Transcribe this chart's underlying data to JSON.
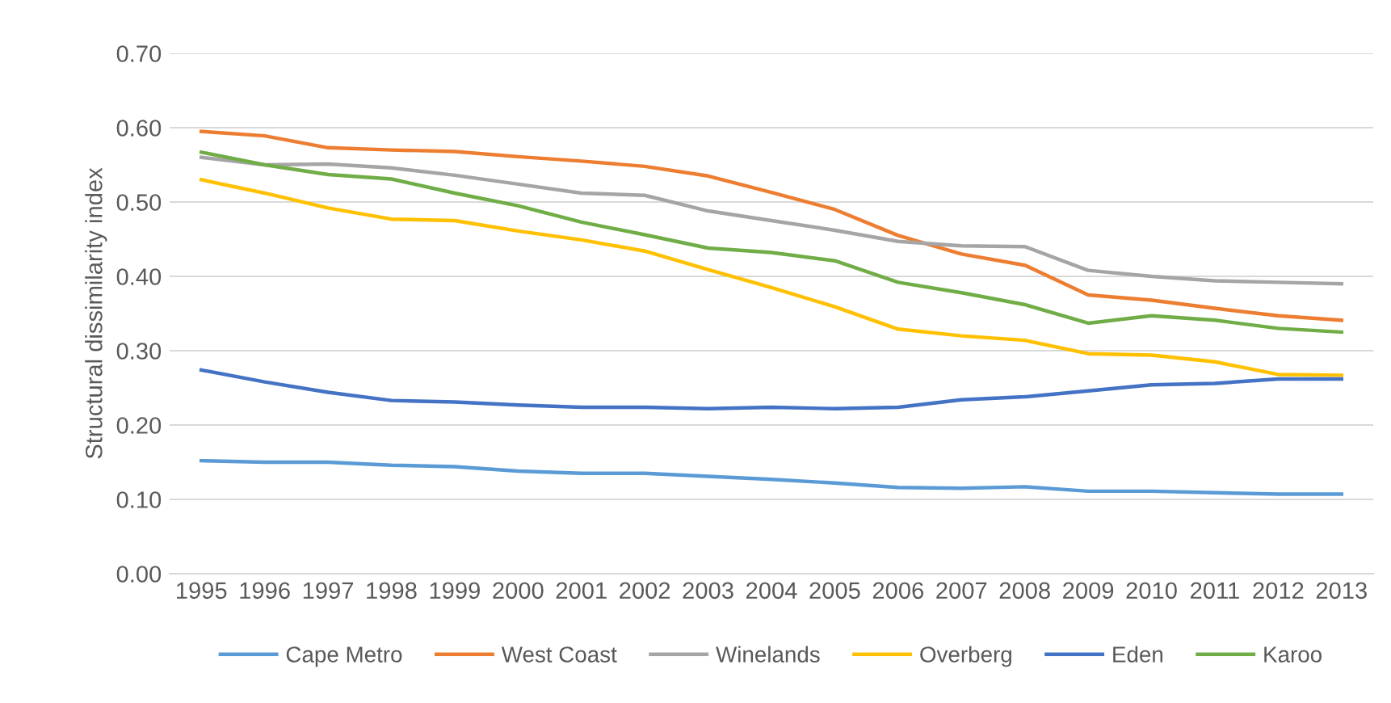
{
  "chart_data": {
    "type": "line",
    "ylabel": "Structural dissimilarity index",
    "categories": [
      "1995",
      "1996",
      "1997",
      "1998",
      "1999",
      "2000",
      "2001",
      "2002",
      "2003",
      "2004",
      "2005",
      "2006",
      "2007",
      "2008",
      "2009",
      "2010",
      "2011",
      "2012",
      "2013"
    ],
    "series": [
      {
        "name": "Cape Metro",
        "color": "#5b9bd5",
        "values": [
          0.152,
          0.15,
          0.15,
          0.146,
          0.144,
          0.138,
          0.135,
          0.135,
          0.131,
          0.127,
          0.122,
          0.116,
          0.115,
          0.117,
          0.111,
          0.111,
          0.109,
          0.107,
          0.107
        ]
      },
      {
        "name": "West Coast",
        "color": "#ed7d31",
        "values": [
          0.595,
          0.589,
          0.573,
          0.57,
          0.568,
          0.561,
          0.555,
          0.548,
          0.535,
          0.513,
          0.49,
          0.455,
          0.43,
          0.415,
          0.375,
          0.368,
          0.357,
          0.347,
          0.341
        ]
      },
      {
        "name": "Winelands",
        "color": "#a5a5a5",
        "values": [
          0.56,
          0.55,
          0.551,
          0.546,
          0.536,
          0.524,
          0.512,
          0.509,
          0.488,
          0.475,
          0.462,
          0.447,
          0.441,
          0.44,
          0.408,
          0.4,
          0.394,
          0.392,
          0.39
        ]
      },
      {
        "name": "Overberg",
        "color": "#ffc000",
        "values": [
          0.53,
          0.512,
          0.492,
          0.477,
          0.475,
          0.461,
          0.449,
          0.434,
          0.409,
          0.385,
          0.359,
          0.329,
          0.32,
          0.314,
          0.296,
          0.294,
          0.285,
          0.268,
          0.267
        ]
      },
      {
        "name": "Eden",
        "color": "#4472c4",
        "values": [
          0.274,
          0.258,
          0.244,
          0.233,
          0.231,
          0.227,
          0.224,
          0.224,
          0.222,
          0.224,
          0.222,
          0.224,
          0.234,
          0.238,
          0.246,
          0.254,
          0.256,
          0.262,
          0.262
        ]
      },
      {
        "name": "Karoo",
        "color": "#70ad47",
        "values": [
          0.567,
          0.55,
          0.537,
          0.531,
          0.512,
          0.495,
          0.473,
          0.456,
          0.438,
          0.432,
          0.421,
          0.392,
          0.378,
          0.362,
          0.337,
          0.347,
          0.341,
          0.33,
          0.325
        ]
      }
    ],
    "ylim": [
      0,
      0.7
    ],
    "yticks": [
      {
        "value": 0,
        "label": "0.00"
      },
      {
        "value": 0.1,
        "label": "0.10"
      },
      {
        "value": 0.2,
        "label": "0.20"
      },
      {
        "value": 0.3,
        "label": "0.30"
      },
      {
        "value": 0.4,
        "label": "0.40"
      },
      {
        "value": 0.5,
        "label": "0.50"
      },
      {
        "value": 0.6,
        "label": "0.60"
      },
      {
        "value": 0.7,
        "label": "0.70"
      }
    ],
    "grid": "y",
    "legend": "bottom",
    "marker": "none",
    "line_style": "solid"
  }
}
